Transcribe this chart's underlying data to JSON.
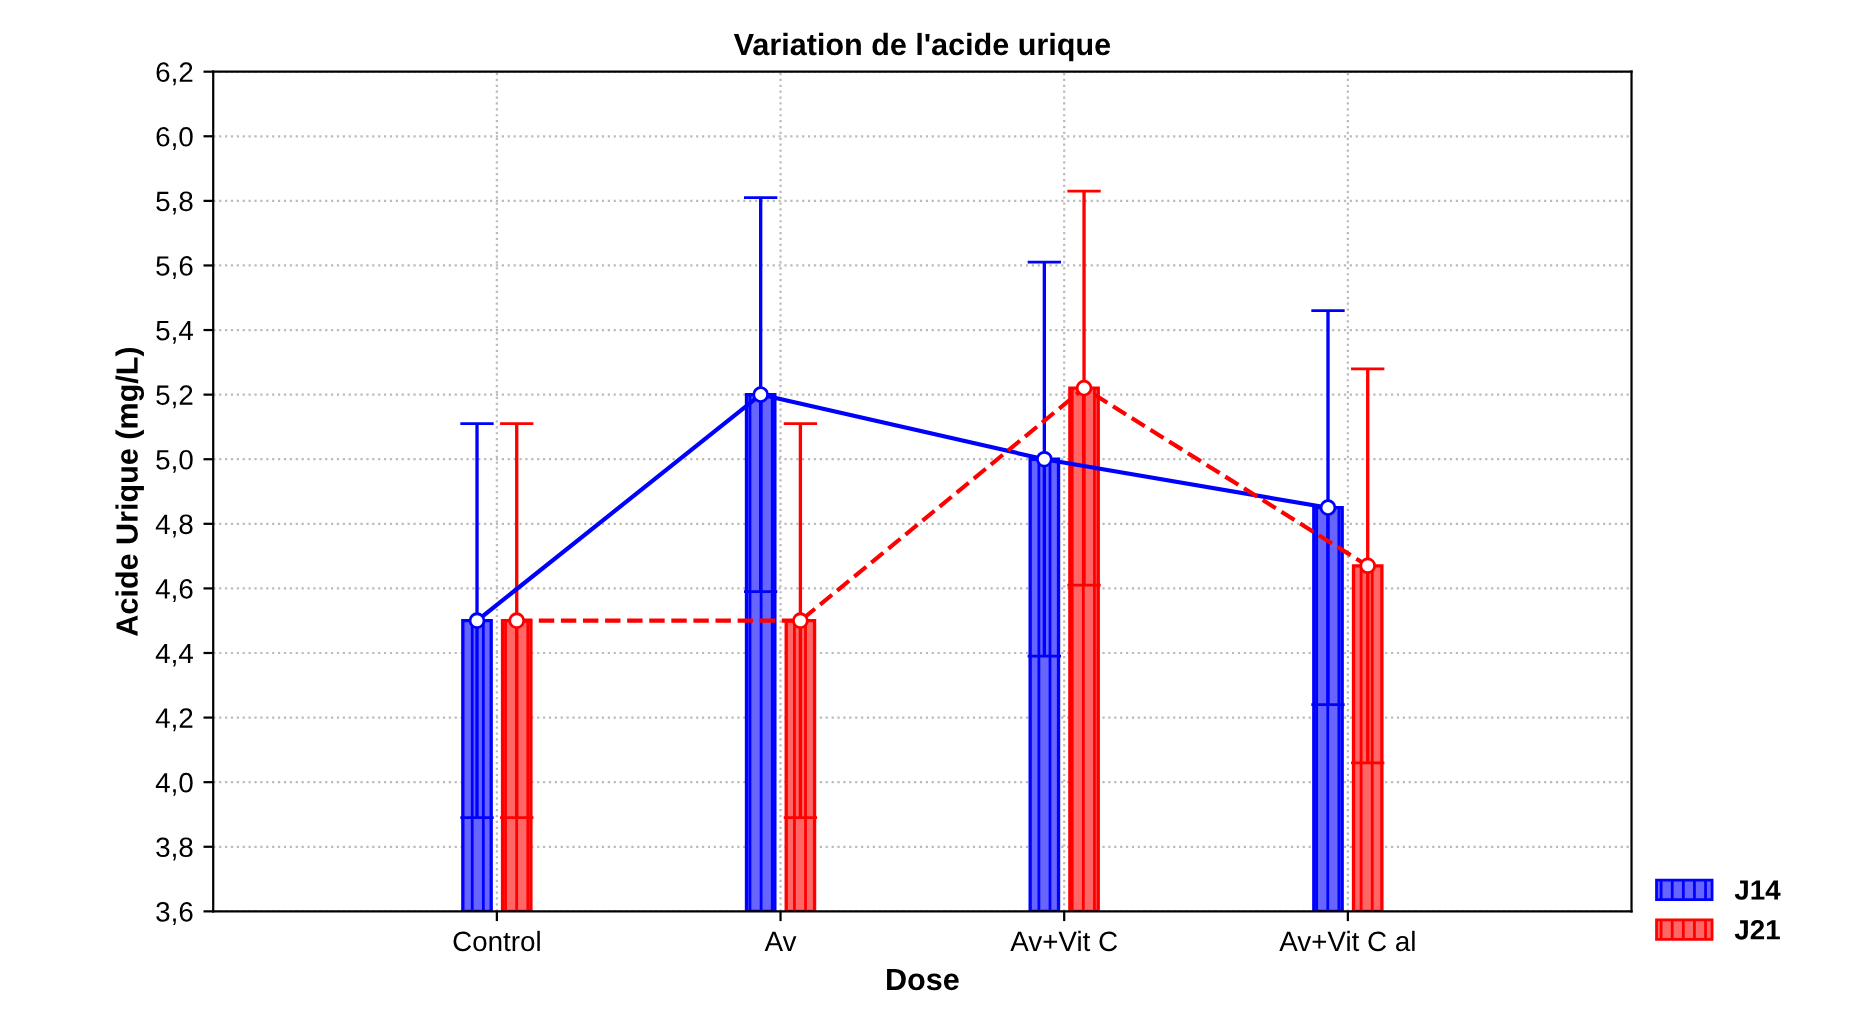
{
  "chart_data": {
    "type": "bar",
    "title": "Variation de l'acide urique",
    "xlabel": "Dose",
    "ylabel": "Acide Urique (mg/L)",
    "categories": [
      "Control",
      "Av",
      "Av+Vit C",
      "Av+Vit C al"
    ],
    "series": [
      {
        "name": "J14",
        "color": "#0000ff",
        "values": [
          4.5,
          5.2,
          5.0,
          4.85
        ],
        "errors": [
          0.61,
          0.61,
          0.61,
          0.61
        ]
      },
      {
        "name": "J21",
        "color": "#ff0000",
        "values": [
          4.5,
          4.5,
          5.22,
          4.67
        ],
        "errors": [
          0.61,
          0.61,
          0.61,
          0.61
        ]
      },
      {
        "type": "line",
        "color": "#0000ff",
        "values": [
          4.5,
          5.2,
          5.0,
          4.85
        ],
        "line_style": "solid",
        "marker": "circle"
      },
      {
        "type": "line",
        "color": "#ff0000",
        "values": [
          4.5,
          4.5,
          5.22,
          4.67
        ],
        "line_style": "dashed",
        "marker": "circle"
      }
    ],
    "ylim": [
      3.6,
      6.2
    ],
    "yticks": [
      {
        "value": 3.6,
        "label": "3,6"
      },
      {
        "value": 3.8,
        "label": "3,8"
      },
      {
        "value": 4.0,
        "label": "4,0"
      },
      {
        "value": 4.2,
        "label": "4,2"
      },
      {
        "value": 4.4,
        "label": "4,4"
      },
      {
        "value": 4.6,
        "label": "4,6"
      },
      {
        "value": 4.8,
        "label": "4,8"
      },
      {
        "value": 5.0,
        "label": "5,0"
      },
      {
        "value": 5.2,
        "label": "5,2"
      },
      {
        "value": 5.4,
        "label": "5,4"
      },
      {
        "value": 5.6,
        "label": "5,6"
      },
      {
        "value": 5.8,
        "label": "5,8"
      },
      {
        "value": 6.0,
        "label": "6,0"
      },
      {
        "value": 6.2,
        "label": "6,2"
      }
    ],
    "grid": true,
    "legend": "bottom right"
  }
}
